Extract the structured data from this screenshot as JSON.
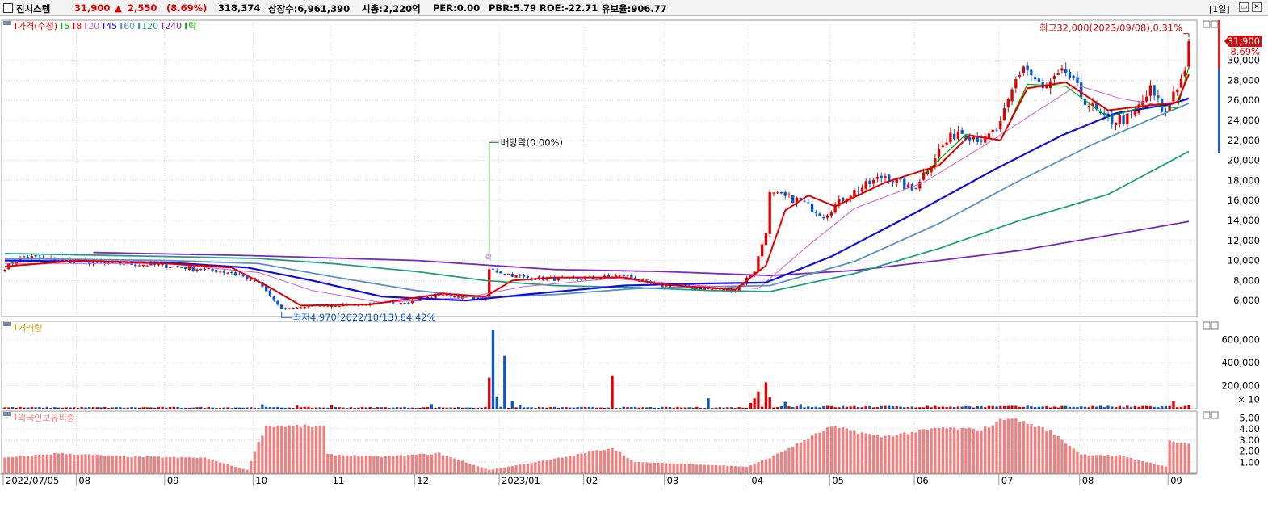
{
  "header": {
    "name": "진시스템",
    "price": "31,900",
    "change_arrow": "▲",
    "change": "2,550",
    "change_pct": "(8.69%)",
    "volume": "318,374",
    "listed_shares": "상장수:6,961,390",
    "market_cap": "시총:2,220억",
    "per": "PER:0.00",
    "pbr": "PBR:5.79",
    "roe": "ROE:-22.71",
    "reserve": "유보율:906.77",
    "period": "[1일]",
    "restore_icon": "window-restore-icon",
    "close_icon": "close-icon"
  },
  "colors": {
    "up": "#e00000",
    "down": "#0a57c9",
    "ma5": "#00a800",
    "ma8": "#e00000",
    "ma20": "#d060d0",
    "ma45": "#1010d8",
    "ma60": "#5b8fc9",
    "ma120": "#20a080",
    "ma240": "#7a28c0",
    "foreign_bar": "#f08080"
  },
  "chart_data": [
    {
      "type": "candlestick",
      "title": "가격(수정)",
      "legend": [
        "가격(수정)",
        "5",
        "8",
        "20",
        "45",
        "60",
        "120",
        "240",
        "락"
      ],
      "legend_colors": [
        "#e00000",
        "#00a800",
        "#e00000",
        "#d060d0",
        "#1010d8",
        "#5b8fc9",
        "#20a080",
        "#7a28c0",
        "#00a800"
      ],
      "y_ticks": [
        6000,
        8000,
        10000,
        12000,
        14000,
        16000,
        18000,
        20000,
        22000,
        24000,
        26000,
        28000,
        30000
      ],
      "y_tick_labels": [
        "6,000",
        "8,000",
        "10,000",
        "12,000",
        "14,000",
        "16,000",
        "18,000",
        "20,000",
        "22,000",
        "24,000",
        "26,000",
        "28,000",
        "30,000"
      ],
      "ylim": [
        4400,
        34000
      ],
      "x_labels": [
        "2022/07/05",
        "08",
        "09",
        "10",
        "11",
        "12",
        "2023/01",
        "02",
        "03",
        "04",
        "05",
        "06",
        "07",
        "08",
        "09"
      ],
      "x_label_dates": [
        "2022-07-05",
        "2022-08-01",
        "2022-09-01",
        "2022-10-04",
        "2022-11-01",
        "2022-12-01",
        "2023-01-02",
        "2023-02-01",
        "2023-03-02",
        "2023-04-03",
        "2023-05-02",
        "2023-06-01",
        "2023-07-03",
        "2023-08-01",
        "2023-09-01"
      ],
      "close_anchors": [
        [
          "2022-07-05",
          9300
        ],
        [
          "2022-07-12",
          10400
        ],
        [
          "2022-07-25",
          10000
        ],
        [
          "2022-08-10",
          9700
        ],
        [
          "2022-08-25",
          9600
        ],
        [
          "2022-09-08",
          9300
        ],
        [
          "2022-09-26",
          8800
        ],
        [
          "2022-10-05",
          7800
        ],
        [
          "2022-10-13",
          5100
        ],
        [
          "2022-10-25",
          5500
        ],
        [
          "2022-11-15",
          5600
        ],
        [
          "2022-11-29",
          5900
        ],
        [
          "2022-12-12",
          6600
        ],
        [
          "2022-12-27",
          6100
        ],
        [
          "2022-12-28",
          9100
        ],
        [
          "2023-01-10",
          8300
        ],
        [
          "2023-01-25",
          8100
        ],
        [
          "2023-02-03",
          8200
        ],
        [
          "2023-02-15",
          8500
        ],
        [
          "2023-02-28",
          7500
        ],
        [
          "2023-03-15",
          7200
        ],
        [
          "2023-03-28",
          7000
        ],
        [
          "2023-04-04",
          9000
        ],
        [
          "2023-04-07",
          13000
        ],
        [
          "2023-04-10",
          16600
        ],
        [
          "2023-04-20",
          16000
        ],
        [
          "2023-04-28",
          14500
        ],
        [
          "2023-05-08",
          16500
        ],
        [
          "2023-05-22",
          18500
        ],
        [
          "2023-05-31",
          17000
        ],
        [
          "2023-06-09",
          21000
        ],
        [
          "2023-06-16",
          23000
        ],
        [
          "2023-06-27",
          22000
        ],
        [
          "2023-07-03",
          23500
        ],
        [
          "2023-07-07",
          28000
        ],
        [
          "2023-07-11",
          29500
        ],
        [
          "2023-07-18",
          27000
        ],
        [
          "2023-07-26",
          28800
        ],
        [
          "2023-08-01",
          26500
        ],
        [
          "2023-08-09",
          24000
        ],
        [
          "2023-08-18",
          24200
        ],
        [
          "2023-08-25",
          27000
        ],
        [
          "2023-08-31",
          24500
        ],
        [
          "2023-09-04",
          27000
        ],
        [
          "2023-09-06",
          28000
        ],
        [
          "2023-09-07",
          29350
        ],
        [
          "2023-09-08",
          31900
        ]
      ],
      "moving_averages": [
        {
          "name": "5",
          "points": [
            [
              "2023-06-05",
              18600
            ],
            [
              "2023-06-20",
              22600
            ],
            [
              "2023-07-03",
              22000
            ],
            [
              "2023-07-12",
              27600
            ],
            [
              "2023-07-26",
              27400
            ],
            [
              "2023-08-10",
              24300
            ],
            [
              "2023-08-25",
              25600
            ],
            [
              "2023-09-05",
              25200
            ],
            [
              "2023-09-08",
              29300
            ]
          ]
        },
        {
          "name": "8",
          "points": [
            [
              "2022-07-05",
              9400
            ],
            [
              "2022-08-01",
              10000
            ],
            [
              "2022-09-01",
              9700
            ],
            [
              "2022-09-26",
              9300
            ],
            [
              "2022-10-10",
              7300
            ],
            [
              "2022-10-20",
              5500
            ],
            [
              "2022-11-15",
              5600
            ],
            [
              "2022-12-12",
              6700
            ],
            [
              "2022-12-27",
              6400
            ],
            [
              "2023-01-05",
              8000
            ],
            [
              "2023-01-20",
              8300
            ],
            [
              "2023-02-15",
              8300
            ],
            [
              "2023-03-01",
              7600
            ],
            [
              "2023-03-28",
              7100
            ],
            [
              "2023-04-07",
              9500
            ],
            [
              "2023-04-14",
              15000
            ],
            [
              "2023-04-24",
              16500
            ],
            [
              "2023-05-03",
              15400
            ],
            [
              "2023-05-22",
              17800
            ],
            [
              "2023-06-09",
              19500
            ],
            [
              "2023-06-21",
              22500
            ],
            [
              "2023-07-03",
              22000
            ],
            [
              "2023-07-12",
              27200
            ],
            [
              "2023-07-26",
              27800
            ],
            [
              "2023-08-10",
              25000
            ],
            [
              "2023-08-25",
              25500
            ],
            [
              "2023-09-05",
              25800
            ],
            [
              "2023-09-08",
              28600
            ]
          ]
        },
        {
          "name": "20",
          "points": [
            [
              "2022-07-05",
              9700
            ],
            [
              "2022-09-01",
              9700
            ],
            [
              "2022-10-05",
              8800
            ],
            [
              "2022-10-25",
              7000
            ],
            [
              "2022-11-20",
              5800
            ],
            [
              "2022-12-20",
              6300
            ],
            [
              "2023-01-10",
              7400
            ],
            [
              "2023-02-10",
              8200
            ],
            [
              "2023-03-15",
              7500
            ],
            [
              "2023-04-05",
              7200
            ],
            [
              "2023-04-24",
              11500
            ],
            [
              "2023-05-10",
              15200
            ],
            [
              "2023-06-05",
              17800
            ],
            [
              "2023-06-26",
              21300
            ],
            [
              "2023-07-14",
              24800
            ],
            [
              "2023-07-31",
              27500
            ],
            [
              "2023-08-15",
              26200
            ],
            [
              "2023-08-31",
              25400
            ],
            [
              "2023-09-08",
              26100
            ]
          ]
        },
        {
          "name": "45",
          "points": [
            [
              "2022-07-05",
              10000
            ],
            [
              "2022-09-01",
              9800
            ],
            [
              "2022-10-01",
              9300
            ],
            [
              "2022-10-25",
              8000
            ],
            [
              "2022-11-20",
              6400
            ],
            [
              "2022-12-20",
              6000
            ],
            [
              "2023-01-15",
              6700
            ],
            [
              "2023-02-15",
              7500
            ],
            [
              "2023-03-15",
              7700
            ],
            [
              "2023-04-07",
              7800
            ],
            [
              "2023-05-02",
              10400
            ],
            [
              "2023-06-01",
              14800
            ],
            [
              "2023-06-30",
              19200
            ],
            [
              "2023-07-25",
              22500
            ],
            [
              "2023-08-14",
              24700
            ],
            [
              "2023-09-01",
              25600
            ],
            [
              "2023-09-08",
              26200
            ]
          ]
        },
        {
          "name": "60",
          "points": [
            [
              "2022-07-05",
              10200
            ],
            [
              "2022-09-01",
              10000
            ],
            [
              "2022-10-05",
              9700
            ],
            [
              "2022-11-01",
              8400
            ],
            [
              "2022-12-01",
              7000
            ],
            [
              "2022-12-27",
              6300
            ],
            [
              "2023-01-20",
              6600
            ],
            [
              "2023-02-20",
              7200
            ],
            [
              "2023-03-20",
              7400
            ],
            [
              "2023-04-10",
              7500
            ],
            [
              "2023-05-10",
              9900
            ],
            [
              "2023-06-10",
              13700
            ],
            [
              "2023-07-07",
              17800
            ],
            [
              "2023-08-04",
              21600
            ],
            [
              "2023-08-25",
              24100
            ],
            [
              "2023-09-08",
              25700
            ]
          ]
        },
        {
          "name": "120",
          "points": [
            [
              "2022-07-05",
              10700
            ],
            [
              "2022-09-01",
              10400
            ],
            [
              "2022-10-05",
              10200
            ],
            [
              "2022-11-01",
              9700
            ],
            [
              "2022-12-01",
              8900
            ],
            [
              "2022-12-27",
              8000
            ],
            [
              "2023-01-20",
              7500
            ],
            [
              "2023-02-20",
              7300
            ],
            [
              "2023-03-20",
              7000
            ],
            [
              "2023-04-10",
              6900
            ],
            [
              "2023-05-10",
              8700
            ],
            [
              "2023-06-10",
              11200
            ],
            [
              "2023-07-10",
              14000
            ],
            [
              "2023-08-10",
              16600
            ],
            [
              "2023-09-08",
              20900
            ]
          ]
        },
        {
          "name": "240",
          "points": [
            [
              "2022-08-05",
              10800
            ],
            [
              "2022-10-01",
              10500
            ],
            [
              "2022-12-01",
              10000
            ],
            [
              "2023-01-20",
              9100
            ],
            [
              "2023-03-01",
              8900
            ],
            [
              "2023-04-10",
              8500
            ],
            [
              "2023-05-10",
              9000
            ],
            [
              "2023-06-10",
              10000
            ],
            [
              "2023-07-10",
              11000
            ],
            [
              "2023-08-10",
              12500
            ],
            [
              "2023-09-08",
              13900
            ]
          ]
        }
      ],
      "annotations": {
        "high": "최고32,000(2023/09/08),0.31%",
        "low": "최저4,970(2022/10/13),84.42%",
        "dividend": "배당락(0.00%)",
        "dividend_mark": "락",
        "last_price": "31,900",
        "last_pct": "8.69%"
      }
    },
    {
      "type": "bar",
      "title": "거래량",
      "y_tick_labels": [
        "200,000",
        "400,000",
        "600,000",
        "× 10"
      ],
      "y_ticks": [
        200000,
        400000,
        600000
      ],
      "ylim": [
        0,
        760000
      ],
      "volume_spikes": [
        [
          "2022-10-06",
          38000
        ],
        [
          "2022-10-19",
          30000
        ],
        [
          "2022-11-01",
          30000
        ],
        [
          "2022-12-07",
          40000
        ],
        [
          "2022-12-28",
          270000
        ],
        [
          "2022-12-29",
          690000
        ],
        [
          "2022-12-30",
          100000
        ],
        [
          "2023-01-03",
          460000
        ],
        [
          "2023-01-05",
          70000
        ],
        [
          "2023-01-09",
          30000
        ],
        [
          "2023-02-10",
          290000
        ],
        [
          "2023-03-17",
          90000
        ],
        [
          "2023-04-03",
          50000
        ],
        [
          "2023-04-04",
          90000
        ],
        [
          "2023-04-05",
          150000
        ],
        [
          "2023-04-07",
          230000
        ],
        [
          "2023-04-10",
          100000
        ],
        [
          "2023-04-14",
          60000
        ],
        [
          "2023-04-20",
          40000
        ],
        [
          "2023-09-04",
          70000
        ],
        [
          "2023-09-08",
          32000
        ]
      ]
    },
    {
      "type": "bar",
      "title": "외국인보유비중",
      "y_tick_labels": [
        "1.00",
        "2.00",
        "3.00",
        "4.00",
        "5.00"
      ],
      "y_ticks": [
        1,
        2,
        3,
        4,
        5
      ],
      "ylim": [
        0,
        5.6
      ],
      "value_anchors": [
        [
          "2022-07-05",
          1.4
        ],
        [
          "2022-07-25",
          1.8
        ],
        [
          "2022-08-20",
          1.5
        ],
        [
          "2022-09-15",
          1.4
        ],
        [
          "2022-09-30",
          0.3
        ],
        [
          "2022-10-04",
          2.0
        ],
        [
          "2022-10-07",
          4.3
        ],
        [
          "2022-10-28",
          4.2
        ],
        [
          "2022-10-31",
          1.7
        ],
        [
          "2022-11-20",
          1.5
        ],
        [
          "2022-12-10",
          1.8
        ],
        [
          "2022-12-28",
          0.3
        ],
        [
          "2023-01-20",
          1.3
        ],
        [
          "2023-02-10",
          2.3
        ],
        [
          "2023-02-20",
          1.0
        ],
        [
          "2023-03-15",
          0.8
        ],
        [
          "2023-03-31",
          0.6
        ],
        [
          "2023-04-10",
          1.4
        ],
        [
          "2023-05-02",
          4.2
        ],
        [
          "2023-05-20",
          3.3
        ],
        [
          "2023-06-12",
          4.1
        ],
        [
          "2023-06-26",
          3.9
        ],
        [
          "2023-07-05",
          5.1
        ],
        [
          "2023-07-20",
          3.8
        ],
        [
          "2023-08-01",
          1.7
        ],
        [
          "2023-08-15",
          1.6
        ],
        [
          "2023-08-31",
          0.6
        ],
        [
          "2023-09-01",
          2.9
        ],
        [
          "2023-09-08",
          2.7
        ]
      ]
    }
  ]
}
